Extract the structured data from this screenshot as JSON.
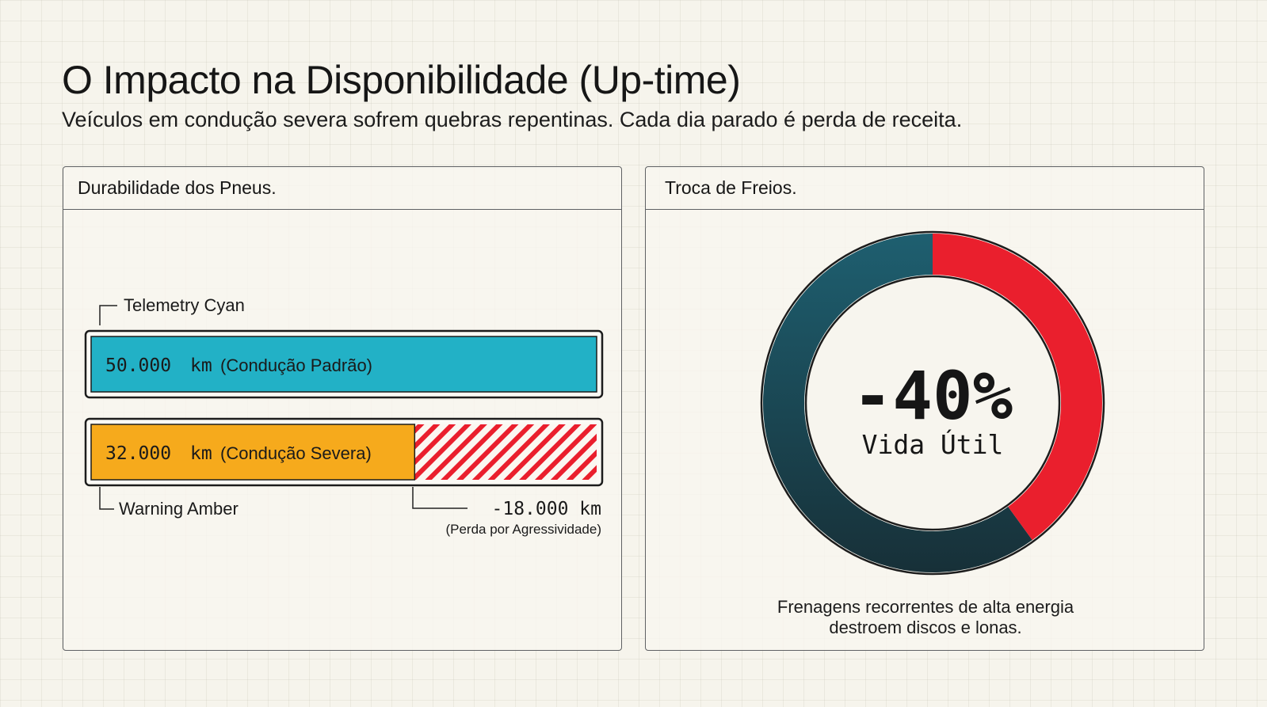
{
  "title": "O Impacto na Disponibilidade (Up-time)",
  "subtitle": "Veículos em condução severa sofrem quebras repentinas. Cada dia parado é perda de receita.",
  "panels": {
    "tires": {
      "header": "Durabilidade dos Pneus."
    },
    "brakes": {
      "header": "Troca de Freios.",
      "caption_line1": "Frenagens recorrentes de alta energia",
      "caption_line2": "destroem discos e lonas."
    }
  },
  "colors": {
    "cyan": "#22b1c6",
    "amber": "#f6aa1c",
    "red": "#ea1f2d",
    "dark_teal": "#1e5f70",
    "dark": "#173038"
  },
  "chart_data": [
    {
      "type": "bar",
      "title": "Durabilidade dos Pneus.",
      "unit": "km",
      "max": 50000,
      "bars": [
        {
          "id": "standard",
          "value": 50000,
          "value_text": "50.000",
          "unit_text": "km",
          "label": "(Condução Padrão)",
          "color": "#22b1c6",
          "callout": "Telemetry Cyan"
        },
        {
          "id": "severe",
          "value": 32000,
          "value_text": "32.000",
          "unit_text": "km",
          "label": "(Condução Severa)",
          "color": "#f6aa1c",
          "callout": "Warning Amber",
          "loss": 18000,
          "loss_text": "-18.000 km",
          "loss_label": "(Perda por Agressividade)",
          "loss_color": "#ea1f2d"
        }
      ]
    },
    {
      "type": "pie",
      "title": "Troca de Freios.",
      "center_value": "-40%",
      "center_label": "Vida Útil",
      "slices": [
        {
          "value": 60,
          "color": "#1e5f70"
        },
        {
          "value": 40,
          "color": "#ea1f2d"
        }
      ]
    }
  ]
}
